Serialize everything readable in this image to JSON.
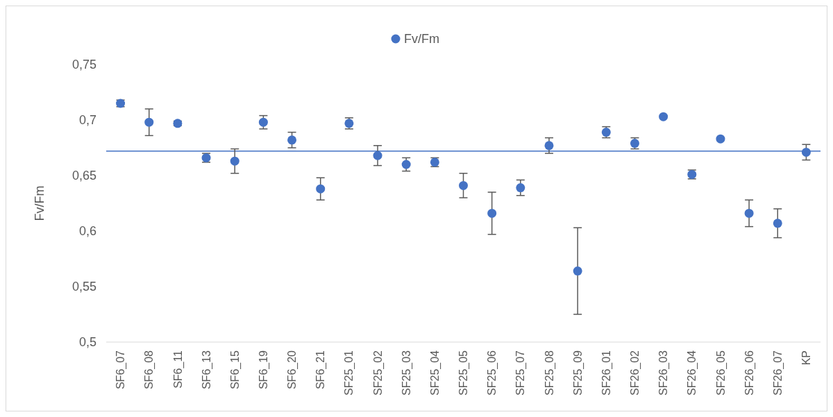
{
  "chart_data": {
    "type": "scatter",
    "ylabel": "Fv/Fm",
    "categories": [
      "SF6_07",
      "SF6_08",
      "SF6_11",
      "SF6_13",
      "SF6_15",
      "SF6_19",
      "SF6_20",
      "SF6_21",
      "SF25_01",
      "SF25_02",
      "SF25_03",
      "SF25_04",
      "SF25_05",
      "SF25_06",
      "SF25_07",
      "SF25_08",
      "SF25_09",
      "SF26_01",
      "SF26_02",
      "SF26_03",
      "SF26_04",
      "SF26_05",
      "SF26_06",
      "SF26_07",
      "KP"
    ],
    "series": [
      {
        "name": "Fv/Fm",
        "color": "#4472c4",
        "values": [
          0.715,
          0.698,
          0.697,
          0.666,
          0.663,
          0.698,
          0.682,
          0.638,
          0.697,
          0.668,
          0.66,
          0.662,
          0.641,
          0.616,
          0.639,
          0.677,
          0.564,
          0.689,
          0.679,
          0.703,
          0.651,
          0.683,
          0.616,
          0.607,
          0.671
        ],
        "errors": [
          0.003,
          0.012,
          0.002,
          0.004,
          0.011,
          0.006,
          0.007,
          0.01,
          0.005,
          0.009,
          0.006,
          0.004,
          0.011,
          0.019,
          0.007,
          0.007,
          0.039,
          0.005,
          0.005,
          null,
          0.004,
          null,
          0.012,
          0.013,
          0.007
        ]
      }
    ],
    "ylim": [
      0.5,
      0.75
    ],
    "yticks": [
      {
        "value": 0.5,
        "label": "0,5"
      },
      {
        "value": 0.55,
        "label": "0,55"
      },
      {
        "value": 0.6,
        "label": "0,6"
      },
      {
        "value": 0.65,
        "label": "0,65"
      },
      {
        "value": 0.7,
        "label": "0,7"
      },
      {
        "value": 0.75,
        "label": "0,75"
      }
    ],
    "ref_lines": [
      {
        "axis": "y",
        "value": 0.672,
        "color": "#4472c4"
      }
    ],
    "grid": false,
    "legend": "top",
    "marker": "circle"
  }
}
